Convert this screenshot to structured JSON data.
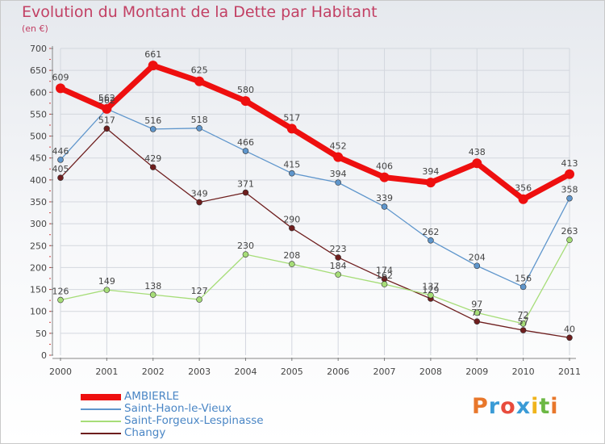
{
  "title": "Evolution du Montant de la Dette par Habitant",
  "subtitle": "(en €)",
  "logo": {
    "text": "Proxiti",
    "letter_colors": [
      "#e8772b",
      "#3a9bd6",
      "#e84b3c",
      "#3a9bd6",
      "#f0b41c",
      "#6cb844",
      "#e8772b"
    ]
  },
  "chart_data": {
    "type": "line",
    "x": [
      "2000",
      "2001",
      "2002",
      "2003",
      "2004",
      "2005",
      "2006",
      "2007",
      "2008",
      "2009",
      "2010",
      "2011"
    ],
    "ylim": [
      0,
      700
    ],
    "yticks": [
      "0",
      "50",
      "100",
      "150",
      "200",
      "250",
      "300",
      "350",
      "400",
      "450",
      "500",
      "550",
      "600",
      "650",
      "700"
    ],
    "grid": true,
    "legend_position": "bottom-left",
    "series": [
      {
        "name": "AMBIERLE",
        "color": "#ee0f0f",
        "width": 7,
        "marker": 6,
        "values": [
          609,
          562,
          661,
          625,
          580,
          517,
          452,
          406,
          394,
          438,
          356,
          413
        ],
        "labels": [
          "609",
          "562",
          "661",
          "625",
          "580",
          "517",
          "452",
          "406",
          "394",
          "438",
          "356",
          "413"
        ]
      },
      {
        "name": "Saint-Haon-le-Vieux",
        "color": "#5f96cc",
        "width": 1.3,
        "marker": 3.5,
        "values": [
          446,
          562,
          516,
          518,
          466,
          415,
          394,
          339,
          262,
          204,
          156,
          358
        ],
        "labels": [
          "446",
          "562",
          "516",
          "518",
          "466",
          "415",
          "394",
          "339",
          "262",
          "204",
          "156",
          "358"
        ]
      },
      {
        "name": "Saint-Forgeux-Lespinasse",
        "color": "#a6dd78",
        "width": 1.3,
        "marker": 3.5,
        "values": [
          126,
          149,
          138,
          127,
          230,
          208,
          184,
          162,
          137,
          97,
          72,
          263
        ],
        "labels": [
          "126",
          "149",
          "138",
          "127",
          "230",
          "208",
          "184",
          "162",
          "137",
          "97",
          "72",
          "263"
        ]
      },
      {
        "name": "Changy",
        "color": "#6e1e1e",
        "width": 1.3,
        "marker": 3.5,
        "values": [
          405,
          517,
          429,
          349,
          371,
          290,
          223,
          174,
          129,
          77,
          57,
          40
        ],
        "labels": [
          "405",
          "517",
          "429",
          "349",
          "371",
          "290",
          "223",
          "174",
          "129",
          "77",
          "57",
          "40"
        ]
      }
    ]
  }
}
